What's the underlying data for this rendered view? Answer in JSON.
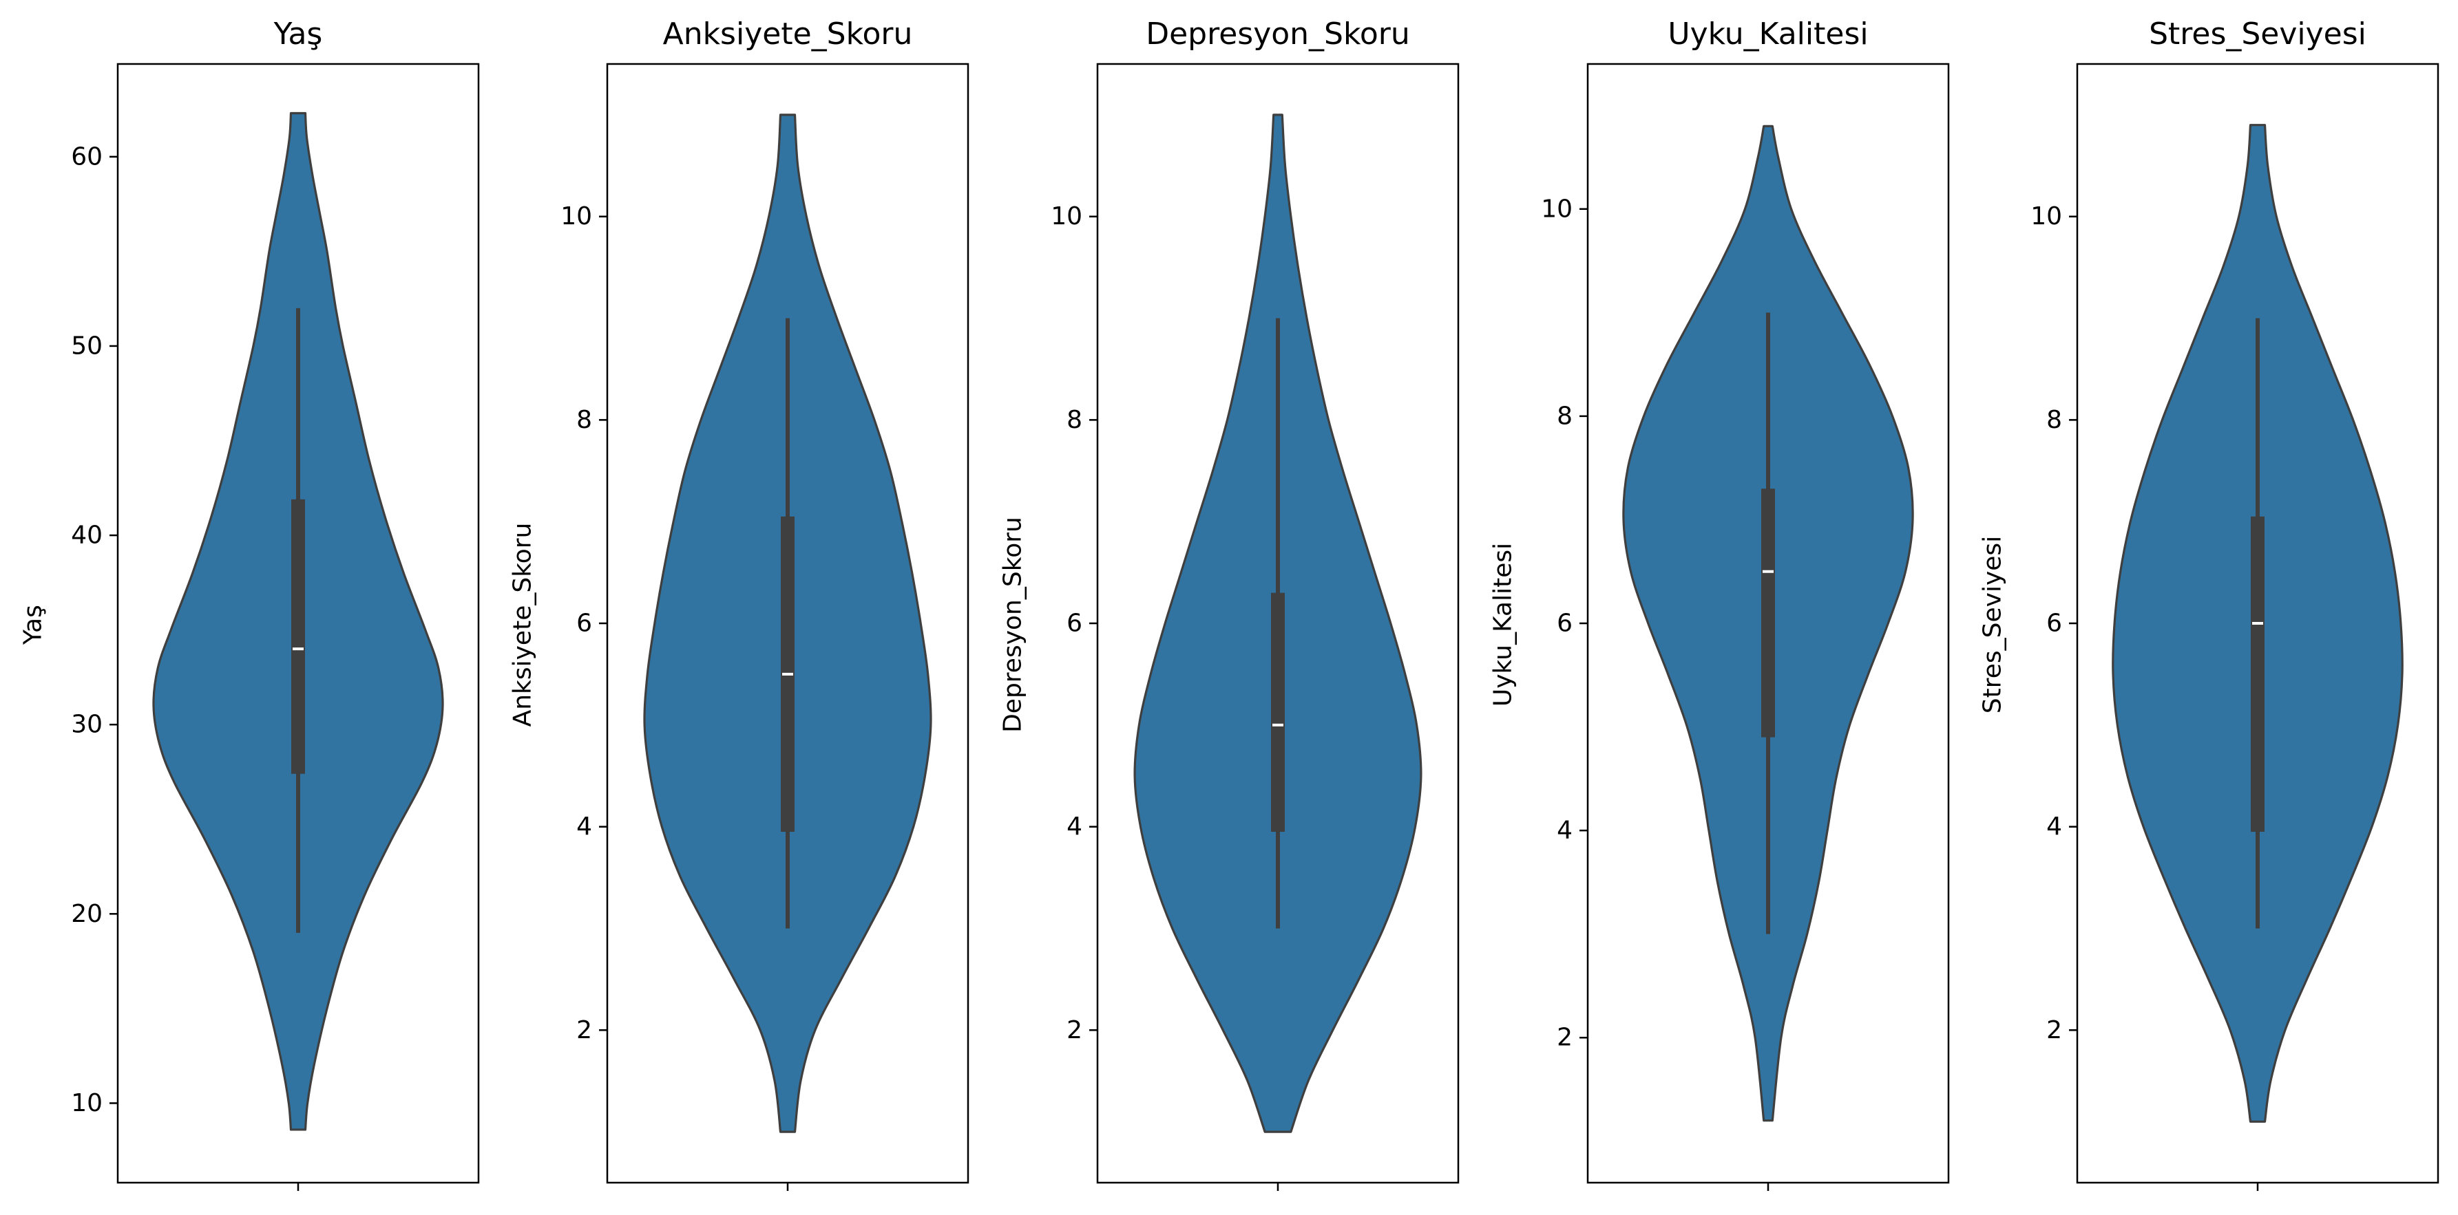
{
  "colors": {
    "violin_fill": "#3274a1",
    "violin_edge": "#3f3f3f",
    "box": "#3f3f3f",
    "median": "#ffffff",
    "axes": "#000000"
  },
  "chart_data": [
    {
      "type": "violin",
      "title": "Yaş",
      "ylabel": "Yaş",
      "ylim": [
        5.8,
        64.9
      ],
      "yticks": [
        10,
        20,
        30,
        40,
        50,
        60
      ],
      "tick_labels": [
        "10",
        "20",
        "30",
        "40",
        "50",
        "60"
      ],
      "x_categories": [
        ""
      ],
      "distribution": {
        "min": 8.6,
        "max": 62.3,
        "density": [
          [
            8.6,
            0.05
          ],
          [
            10,
            0.065
          ],
          [
            12,
            0.11
          ],
          [
            15,
            0.2
          ],
          [
            18,
            0.31
          ],
          [
            21,
            0.46
          ],
          [
            24,
            0.65
          ],
          [
            27,
            0.86
          ],
          [
            29,
            0.96
          ],
          [
            31,
            1.0
          ],
          [
            33,
            0.97
          ],
          [
            35,
            0.88
          ],
          [
            38,
            0.73
          ],
          [
            41,
            0.6
          ],
          [
            44,
            0.49
          ],
          [
            47,
            0.4
          ],
          [
            50,
            0.31
          ],
          [
            52,
            0.26
          ],
          [
            55,
            0.2
          ],
          [
            57,
            0.15
          ],
          [
            59,
            0.1
          ],
          [
            61,
            0.06
          ],
          [
            62.3,
            0.05
          ]
        ]
      },
      "box": {
        "q1": 27.4,
        "median": 34.0,
        "q3": 41.9,
        "whisker_low": 19.0,
        "whisker_high": 52.0
      }
    },
    {
      "type": "violin",
      "title": "Anksiyete_Skoru",
      "ylabel": "Anksiyete_Skoru",
      "ylim": [
        0.5,
        11.5
      ],
      "yticks": [
        2,
        4,
        6,
        8,
        10
      ],
      "tick_labels": [
        "2",
        "4",
        "6",
        "8",
        "10"
      ],
      "x_categories": [
        ""
      ],
      "distribution": {
        "min": 1.0,
        "max": 11.0,
        "density": [
          [
            1.0,
            0.05
          ],
          [
            1.5,
            0.09
          ],
          [
            2.0,
            0.19
          ],
          [
            2.5,
            0.37
          ],
          [
            3.0,
            0.56
          ],
          [
            3.5,
            0.74
          ],
          [
            4.0,
            0.87
          ],
          [
            4.5,
            0.95
          ],
          [
            5.0,
            0.99
          ],
          [
            5.5,
            0.97
          ],
          [
            6.0,
            0.92
          ],
          [
            6.5,
            0.86
          ],
          [
            7.0,
            0.79
          ],
          [
            7.5,
            0.71
          ],
          [
            8.0,
            0.6
          ],
          [
            8.5,
            0.47
          ],
          [
            9.0,
            0.34
          ],
          [
            9.5,
            0.22
          ],
          [
            10.0,
            0.13
          ],
          [
            10.5,
            0.07
          ],
          [
            11.0,
            0.05
          ]
        ]
      },
      "box": {
        "q1": 3.95,
        "median": 5.5,
        "q3": 7.05,
        "whisker_low": 3.0,
        "whisker_high": 9.0
      }
    },
    {
      "type": "violin",
      "title": "Depresyon_Skoru",
      "ylabel": "Depresyon_Skoru",
      "ylim": [
        0.5,
        11.5
      ],
      "yticks": [
        2,
        4,
        6,
        8,
        10
      ],
      "tick_labels": [
        "2",
        "4",
        "6",
        "8",
        "10"
      ],
      "x_categories": [
        ""
      ],
      "distribution": {
        "min": 1.0,
        "max": 11.0,
        "density": [
          [
            1.0,
            0.09
          ],
          [
            1.5,
            0.21
          ],
          [
            2.0,
            0.38
          ],
          [
            2.5,
            0.56
          ],
          [
            3.0,
            0.73
          ],
          [
            3.5,
            0.86
          ],
          [
            4.0,
            0.95
          ],
          [
            4.5,
            0.99
          ],
          [
            5.0,
            0.96
          ],
          [
            5.5,
            0.88
          ],
          [
            6.0,
            0.78
          ],
          [
            6.5,
            0.67
          ],
          [
            7.0,
            0.56
          ],
          [
            7.5,
            0.45
          ],
          [
            8.0,
            0.35
          ],
          [
            8.5,
            0.27
          ],
          [
            9.0,
            0.2
          ],
          [
            9.5,
            0.14
          ],
          [
            10.0,
            0.09
          ],
          [
            10.5,
            0.05
          ],
          [
            11.0,
            0.03
          ]
        ]
      },
      "box": {
        "q1": 3.95,
        "median": 5.0,
        "q3": 6.3,
        "whisker_low": 3.0,
        "whisker_high": 9.0
      }
    },
    {
      "type": "violin",
      "title": "Uyku_Kalitesi",
      "ylabel": "Uyku_Kalitesi",
      "ylim": [
        0.6,
        11.4
      ],
      "yticks": [
        2,
        4,
        6,
        8,
        10
      ],
      "tick_labels": [
        "2",
        "4",
        "6",
        "8",
        "10"
      ],
      "x_categories": [
        ""
      ],
      "distribution": {
        "min": 1.2,
        "max": 10.8,
        "density": [
          [
            1.2,
            0.03
          ],
          [
            2.0,
            0.09
          ],
          [
            2.5,
            0.17
          ],
          [
            3.0,
            0.27
          ],
          [
            3.5,
            0.35
          ],
          [
            4.0,
            0.41
          ],
          [
            4.5,
            0.47
          ],
          [
            5.0,
            0.56
          ],
          [
            5.5,
            0.69
          ],
          [
            6.0,
            0.83
          ],
          [
            6.5,
            0.95
          ],
          [
            7.0,
            1.0
          ],
          [
            7.5,
            0.97
          ],
          [
            8.0,
            0.86
          ],
          [
            8.5,
            0.7
          ],
          [
            9.0,
            0.51
          ],
          [
            9.5,
            0.32
          ],
          [
            10.0,
            0.16
          ],
          [
            10.5,
            0.07
          ],
          [
            10.8,
            0.03
          ]
        ]
      },
      "box": {
        "q1": 4.9,
        "median": 6.5,
        "q3": 7.3,
        "whisker_low": 3.0,
        "whisker_high": 9.0
      }
    },
    {
      "type": "violin",
      "title": "Stres_Seviyesi",
      "ylabel": "Stres_Seviyesi",
      "ylim": [
        0.5,
        11.5
      ],
      "yticks": [
        2,
        4,
        6,
        8,
        10
      ],
      "tick_labels": [
        "2",
        "4",
        "6",
        "8",
        "10"
      ],
      "x_categories": [
        ""
      ],
      "distribution": {
        "min": 1.1,
        "max": 10.9,
        "density": [
          [
            1.1,
            0.05
          ],
          [
            1.5,
            0.09
          ],
          [
            2.0,
            0.19
          ],
          [
            2.5,
            0.34
          ],
          [
            3.0,
            0.5
          ],
          [
            3.5,
            0.65
          ],
          [
            4.0,
            0.79
          ],
          [
            4.5,
            0.9
          ],
          [
            5.0,
            0.97
          ],
          [
            5.5,
            1.0
          ],
          [
            6.0,
            0.99
          ],
          [
            6.5,
            0.95
          ],
          [
            7.0,
            0.88
          ],
          [
            7.5,
            0.78
          ],
          [
            8.0,
            0.66
          ],
          [
            8.5,
            0.52
          ],
          [
            9.0,
            0.38
          ],
          [
            9.5,
            0.24
          ],
          [
            10.0,
            0.13
          ],
          [
            10.5,
            0.07
          ],
          [
            10.9,
            0.05
          ]
        ]
      },
      "box": {
        "q1": 3.95,
        "median": 6.0,
        "q3": 7.05,
        "whisker_low": 3.0,
        "whisker_high": 9.0
      }
    }
  ]
}
